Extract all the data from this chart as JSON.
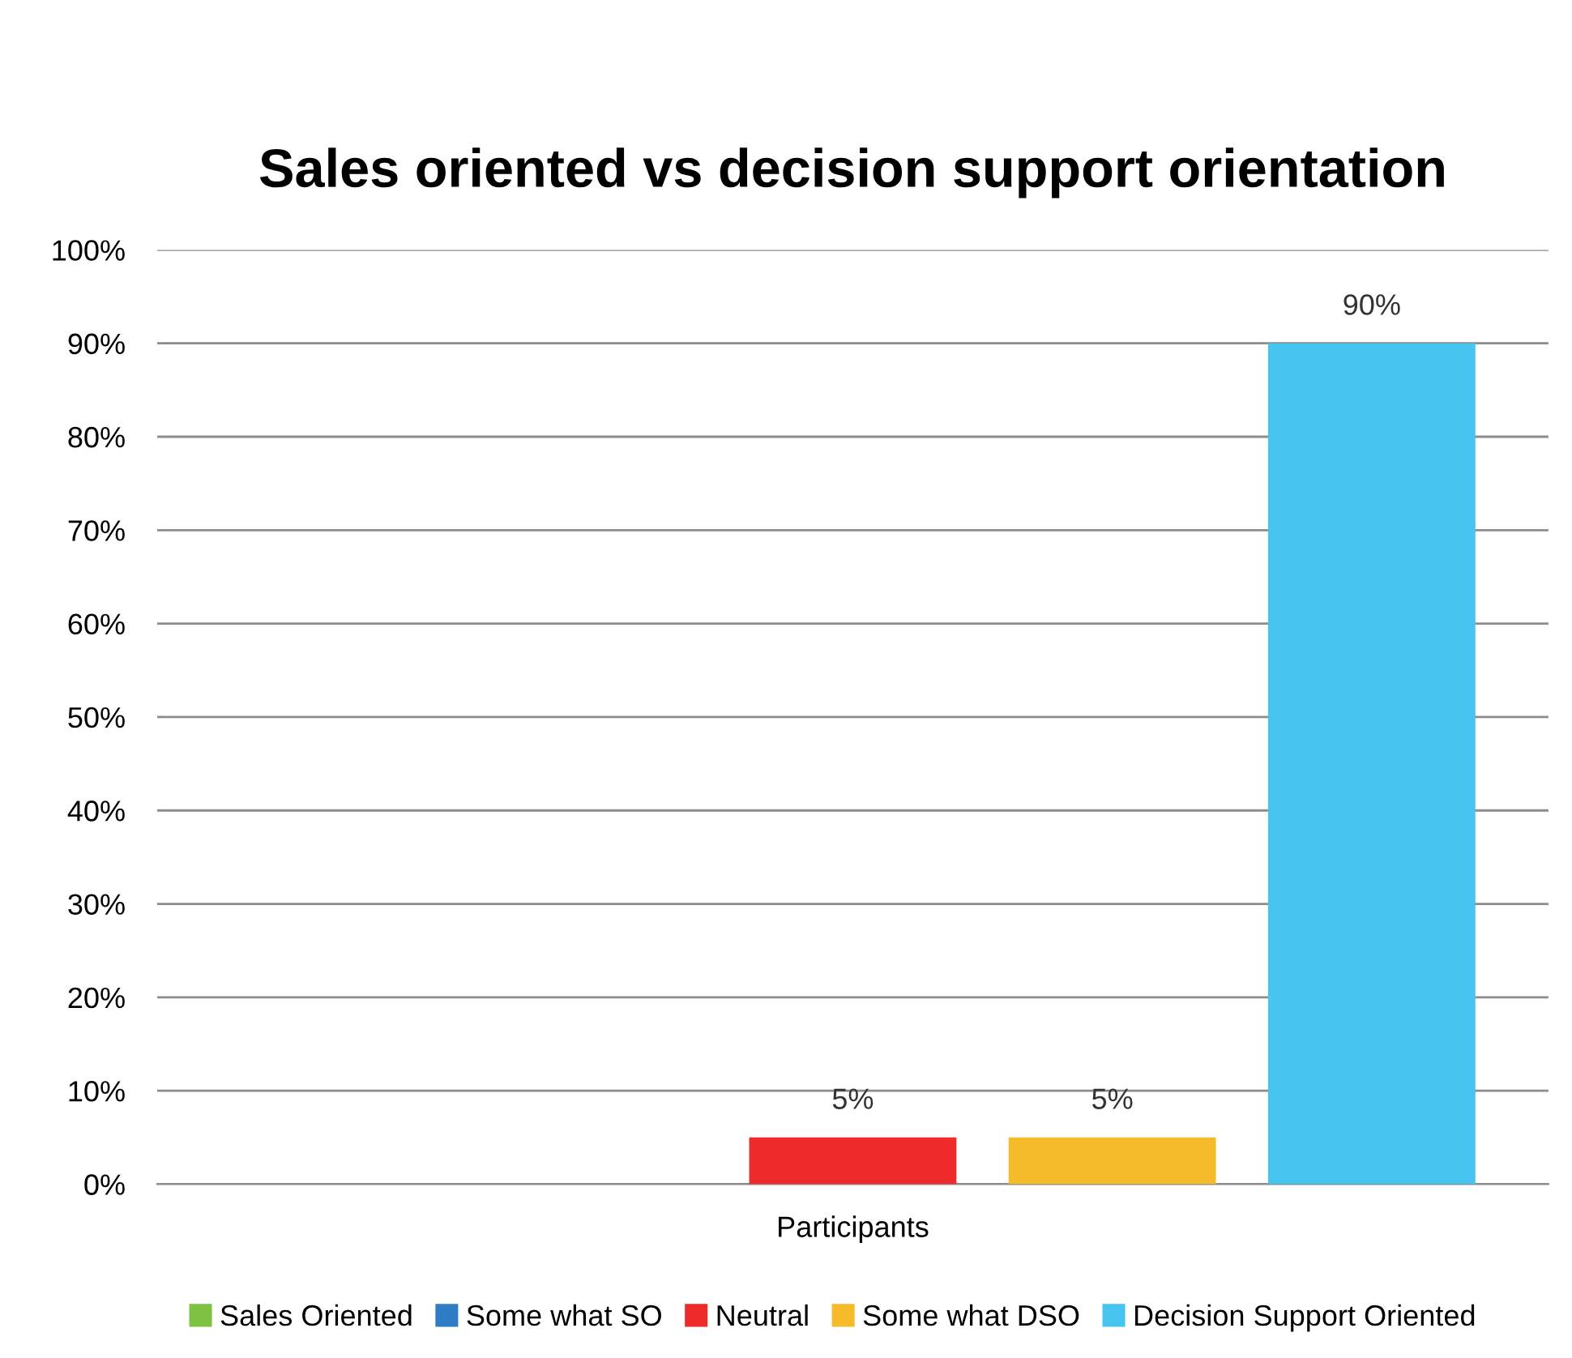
{
  "chart_data": {
    "type": "bar",
    "title": "Sales oriented vs decision support orientation",
    "categories": [
      "Participants"
    ],
    "series": [
      {
        "name": "Sales Oriented",
        "color": "#7dc242",
        "values": [
          0
        ],
        "value_labels": [
          null
        ]
      },
      {
        "name": "Some what SO",
        "color": "#2f7cc4",
        "values": [
          0
        ],
        "value_labels": [
          null
        ]
      },
      {
        "name": "Neutral",
        "color": "#ee2a2a",
        "values": [
          5
        ],
        "value_labels": [
          "5%"
        ]
      },
      {
        "name": "Some what DSO",
        "color": "#f5bb2a",
        "values": [
          5
        ],
        "value_labels": [
          "5%"
        ]
      },
      {
        "name": "Decision Support Oriented",
        "color": "#47c4ef",
        "values": [
          90
        ],
        "value_labels": [
          "90%"
        ]
      }
    ],
    "ylim": [
      0,
      100
    ],
    "yticks": [
      {
        "value": 0,
        "label": "0%"
      },
      {
        "value": 10,
        "label": "10%"
      },
      {
        "value": 20,
        "label": "20%"
      },
      {
        "value": 30,
        "label": "30%"
      },
      {
        "value": 40,
        "label": "40%"
      },
      {
        "value": 50,
        "label": "50%"
      },
      {
        "value": 60,
        "label": "60%"
      },
      {
        "value": 70,
        "label": "70%"
      },
      {
        "value": 80,
        "label": "80%"
      },
      {
        "value": 90,
        "label": "90%"
      },
      {
        "value": 100,
        "label": "100%"
      }
    ],
    "grid": "y",
    "legend": "bottom"
  }
}
